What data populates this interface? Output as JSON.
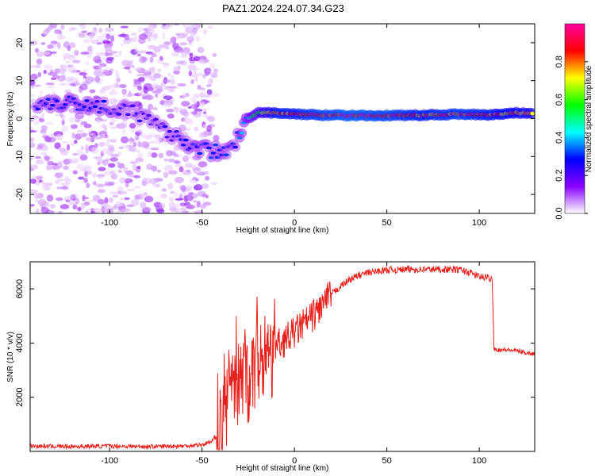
{
  "title": "PAZ1.2024.224.07.34.G23",
  "chart_data": [
    {
      "type": "heatmap",
      "xlabel": "Height of straight line (km)",
      "ylabel": "Frequency (Hz)",
      "xlim": [
        -143,
        130
      ],
      "ylim": [
        -25,
        25
      ],
      "xticks": [
        -100,
        -50,
        0,
        50,
        100
      ],
      "yticks": [
        -20,
        -10,
        0,
        10,
        20
      ],
      "colorbar": {
        "label": "Normalized spectral amplitude",
        "range": [
          0,
          1
        ],
        "ticks": [
          0.0,
          0.2,
          0.4,
          0.6,
          0.8
        ],
        "colors": [
          "#ffffff",
          "#8a00ff",
          "#0000ff",
          "#00ffff",
          "#00ff00",
          "#ffff00",
          "#ff0000",
          "#ff00a0"
        ]
      },
      "ridge": [
        {
          "x": -140,
          "y": 4,
          "a": 0.25
        },
        {
          "x": -125,
          "y": 4.5,
          "a": 0.3
        },
        {
          "x": -110,
          "y": 3.5,
          "a": 0.28
        },
        {
          "x": -95,
          "y": 3,
          "a": 0.25
        },
        {
          "x": -85,
          "y": 1,
          "a": 0.22
        },
        {
          "x": -75,
          "y": -2,
          "a": 0.22
        },
        {
          "x": -65,
          "y": -4,
          "a": 0.25
        },
        {
          "x": -55,
          "y": -7,
          "a": 0.28
        },
        {
          "x": -45,
          "y": -9,
          "a": 0.3
        },
        {
          "x": -38,
          "y": -8,
          "a": 0.3
        },
        {
          "x": -32,
          "y": -6,
          "a": 0.28
        },
        {
          "x": -25,
          "y": 0,
          "a": 0.45
        },
        {
          "x": -20,
          "y": 1.5,
          "a": 0.6
        },
        {
          "x": -10,
          "y": 1.5,
          "a": 0.85
        },
        {
          "x": 0,
          "y": 1.2,
          "a": 0.85
        },
        {
          "x": 10,
          "y": 1,
          "a": 0.9
        },
        {
          "x": 30,
          "y": 0.8,
          "a": 0.95
        },
        {
          "x": 50,
          "y": 0.8,
          "a": 0.92
        },
        {
          "x": 70,
          "y": 0.9,
          "a": 0.85
        },
        {
          "x": 90,
          "y": 1.2,
          "a": 0.9
        },
        {
          "x": 105,
          "y": 1,
          "a": 0.85
        },
        {
          "x": 120,
          "y": 1.5,
          "a": 0.8
        },
        {
          "x": 130,
          "y": 1.5,
          "a": 0.75
        }
      ]
    },
    {
      "type": "line",
      "xlabel": "Height of straight line (km)",
      "ylabel": "SNR (10 * v/v)",
      "xlim": [
        -143,
        130
      ],
      "ylim": [
        0,
        7000
      ],
      "xticks": [
        -100,
        -50,
        0,
        50,
        100
      ],
      "yticks": [
        2000,
        4000,
        6000
      ],
      "line_color": "#e8201c",
      "series": [
        {
          "x": [
            -143,
            -120,
            -100,
            -80,
            -60,
            -50,
            -45,
            -42,
            -40,
            -38,
            -35,
            -30,
            -25,
            -20,
            -15,
            -10,
            -5,
            0,
            5,
            10,
            15,
            20,
            25,
            30,
            35,
            40,
            45,
            50,
            55,
            60,
            70,
            80,
            90,
            95,
            100,
            105,
            107,
            108,
            110,
            115,
            120,
            125,
            130
          ],
          "values": [
            200,
            180,
            200,
            180,
            200,
            250,
            350,
            600,
            1000,
            1800,
            2500,
            3000,
            3200,
            3500,
            3700,
            3900,
            4100,
            4400,
            4700,
            5000,
            5400,
            5800,
            6100,
            6350,
            6500,
            6600,
            6650,
            6700,
            6700,
            6720,
            6720,
            6730,
            6700,
            6600,
            6450,
            6400,
            6350,
            3800,
            3750,
            3750,
            3720,
            3650,
            3600
          ]
        }
      ]
    }
  ]
}
